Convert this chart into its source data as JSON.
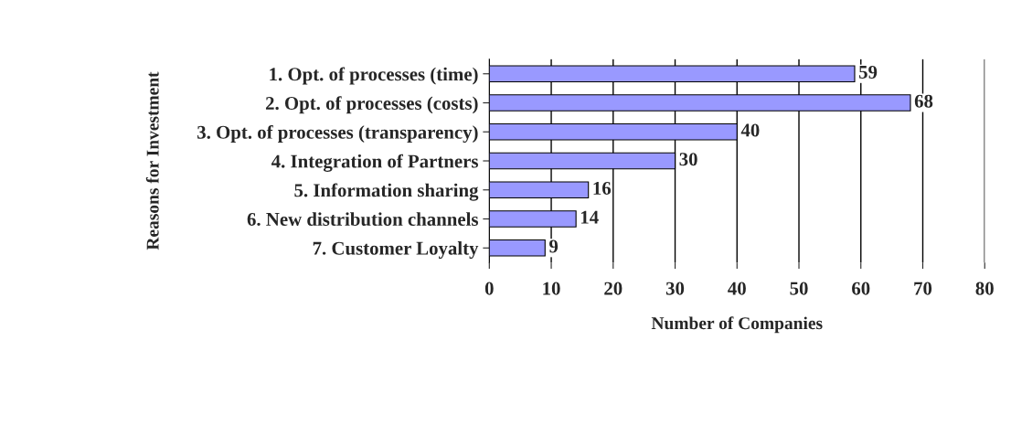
{
  "chart_data": {
    "type": "bar",
    "orientation": "horizontal",
    "categories": [
      "1. Opt. of processes (time)",
      "2. Opt. of processes (costs)",
      "3. Opt. of processes (transparency)",
      "4. Integration of Partners",
      "5. Information sharing",
      "6. New distribution channels",
      "7. Customer Loyalty"
    ],
    "values": [
      59,
      68,
      40,
      30,
      16,
      14,
      9
    ],
    "color": "#9999ff",
    "xlabel": "Number of Companies",
    "ylabel": "Reasons for Investment",
    "xlim": [
      0,
      80
    ],
    "xticks": [
      0,
      10,
      20,
      30,
      40,
      50,
      60,
      70,
      80
    ],
    "grid": "x",
    "data_labels": true
  }
}
